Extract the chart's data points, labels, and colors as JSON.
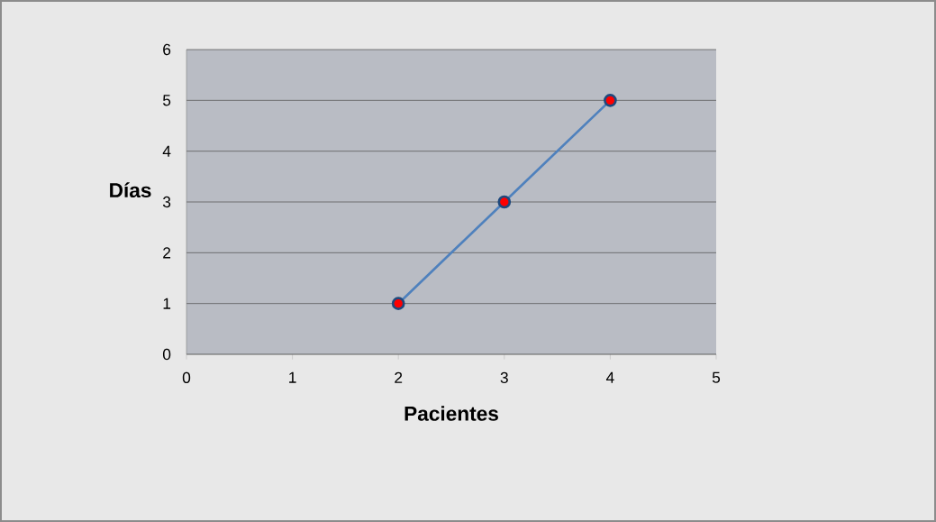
{
  "chart_data": {
    "type": "line",
    "xlabel": "Pacientes",
    "ylabel": "Días",
    "x": [
      2,
      3,
      4
    ],
    "series": [
      {
        "color": "#4f81bd",
        "values": [
          1,
          3,
          5
        ]
      }
    ],
    "xlim": [
      0,
      5
    ],
    "ylim": [
      0,
      6
    ],
    "xticks": [
      0,
      1,
      2,
      3,
      4,
      5
    ],
    "yticks": [
      0,
      1,
      2,
      3,
      4,
      5,
      6
    ],
    "grid": "y",
    "marker": "circle",
    "line_style": "solid"
  }
}
